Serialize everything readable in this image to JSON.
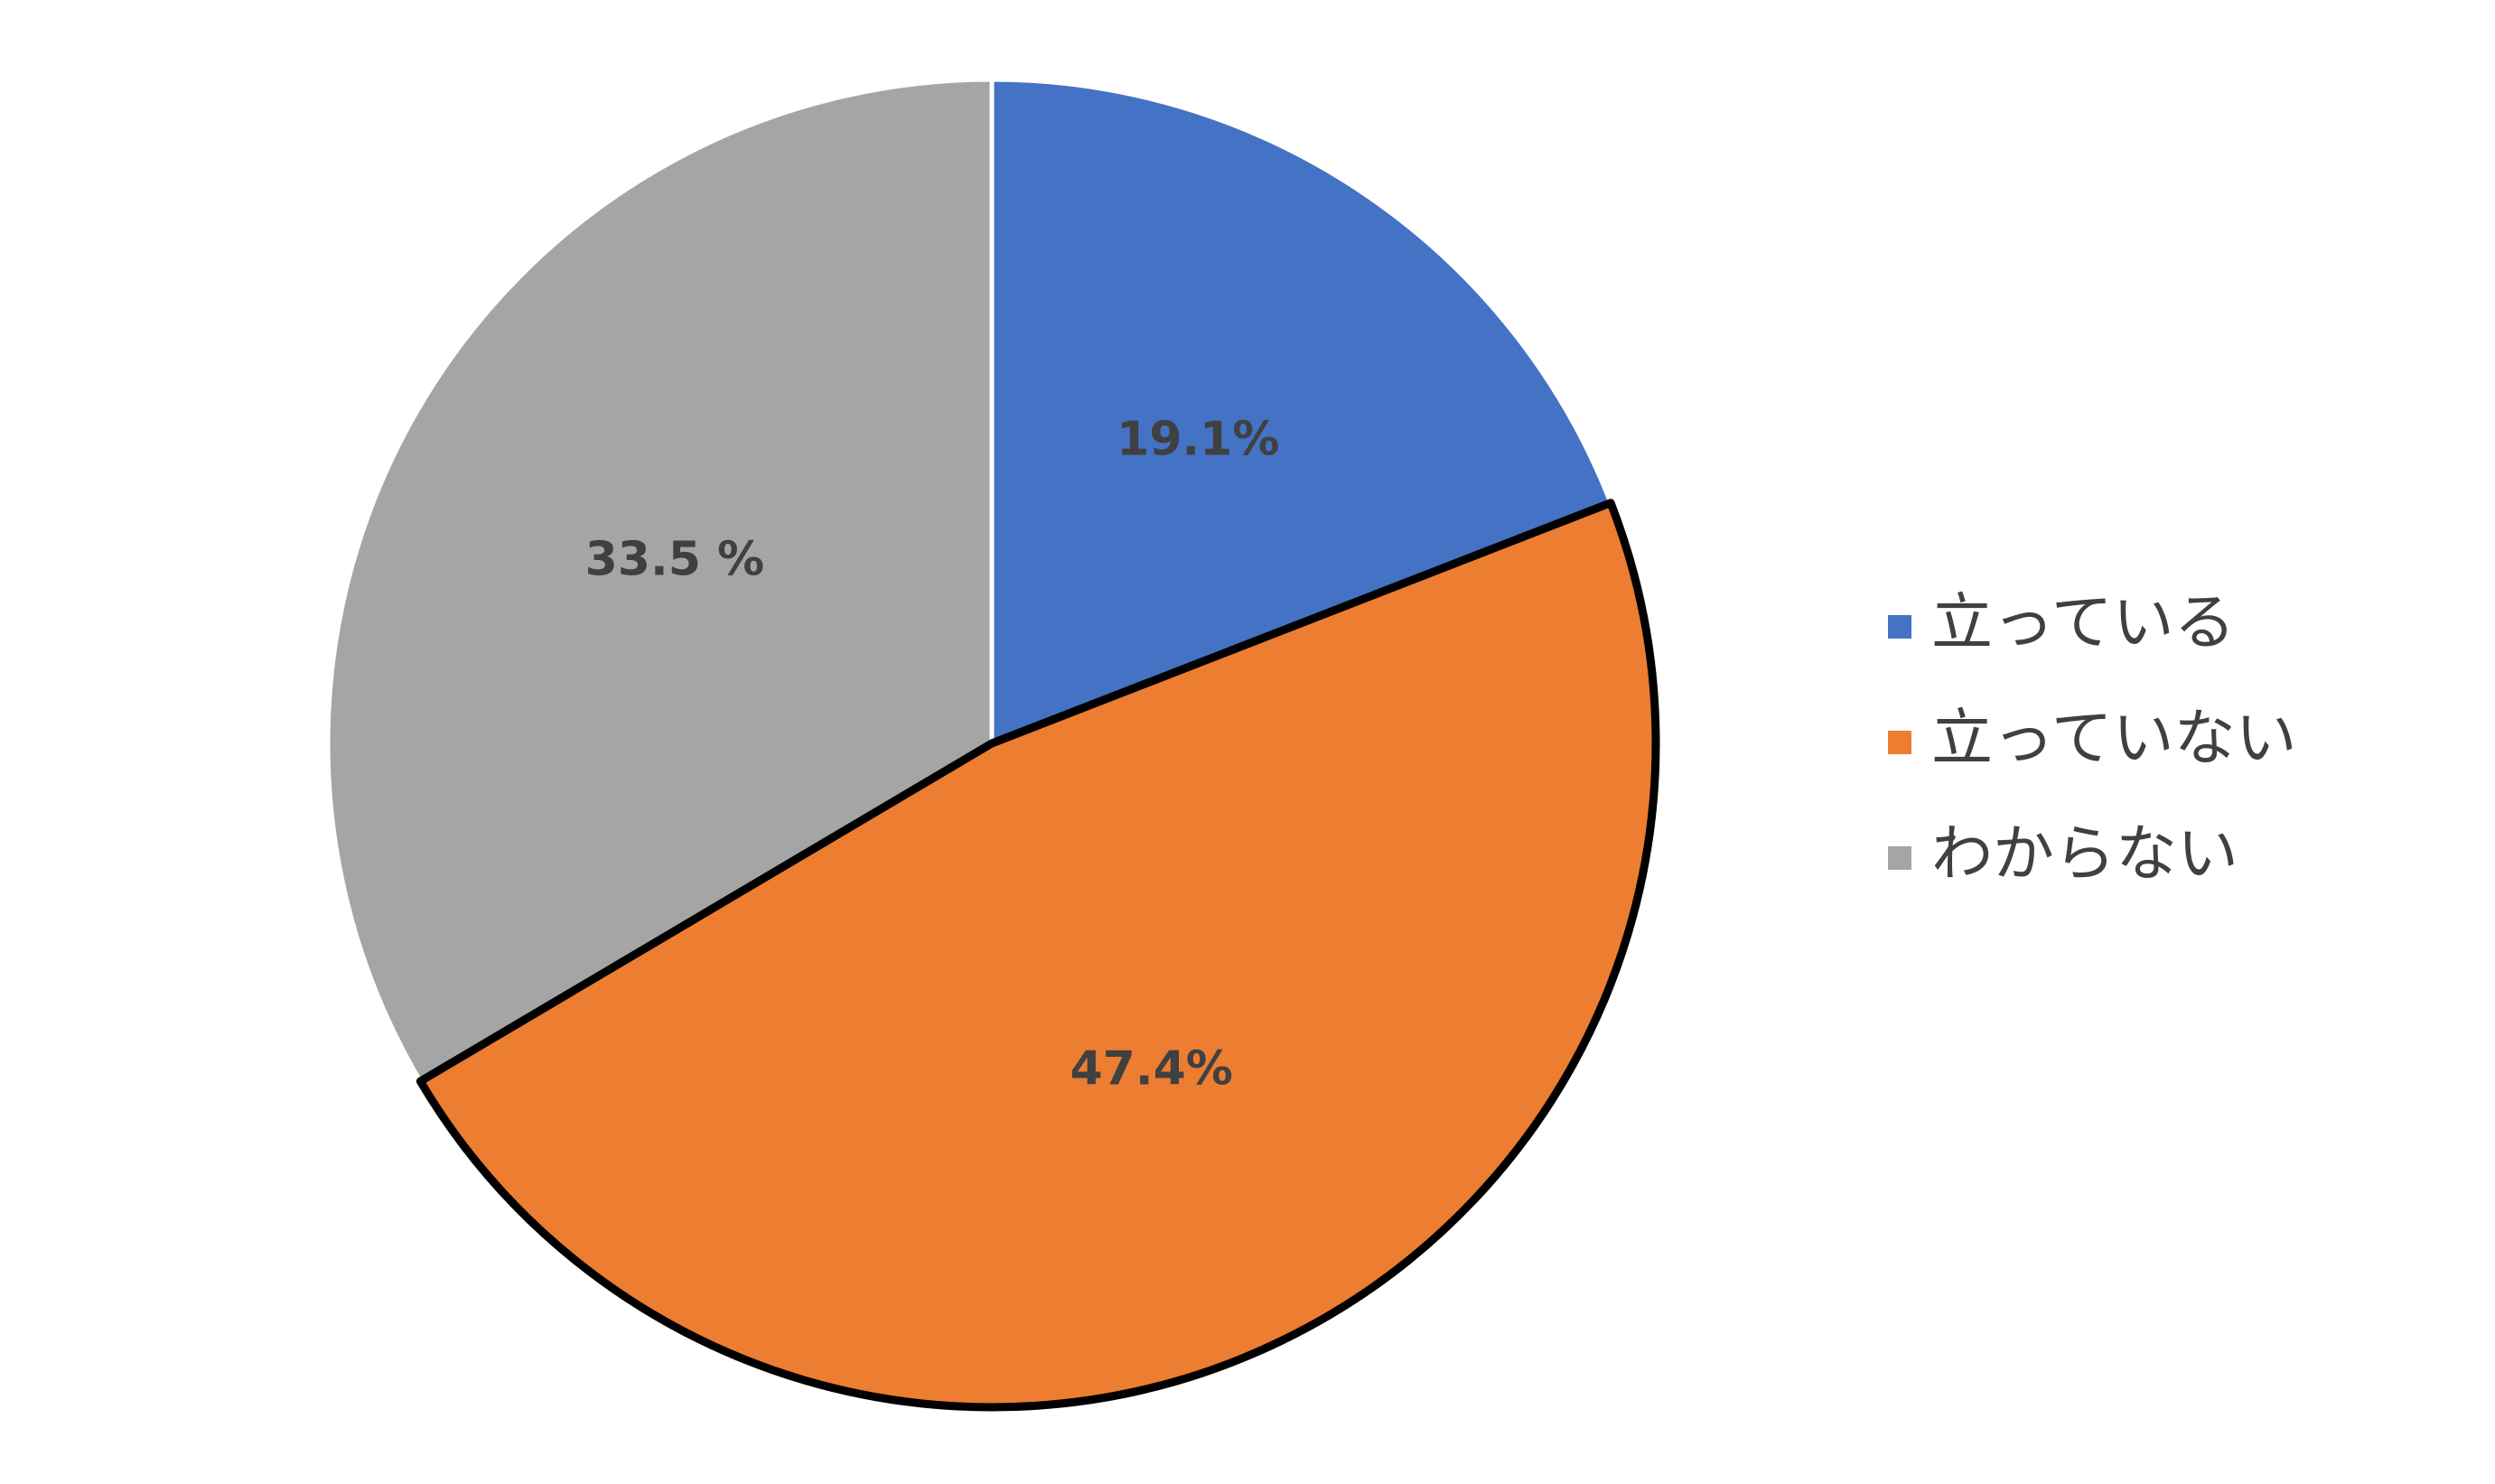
{
  "chart_data": {
    "type": "pie",
    "categories": [
      "立っている",
      "立っていない",
      "わからない"
    ],
    "values": [
      19.1,
      47.4,
      33.5
    ],
    "value_labels": [
      "19.1%",
      "47.4%",
      "33.5 %"
    ],
    "colors": [
      "#4472c4",
      "#ed7d31",
      "#a5a5a5"
    ],
    "outlines": [
      null,
      "#000000",
      null
    ],
    "legend": "right"
  }
}
